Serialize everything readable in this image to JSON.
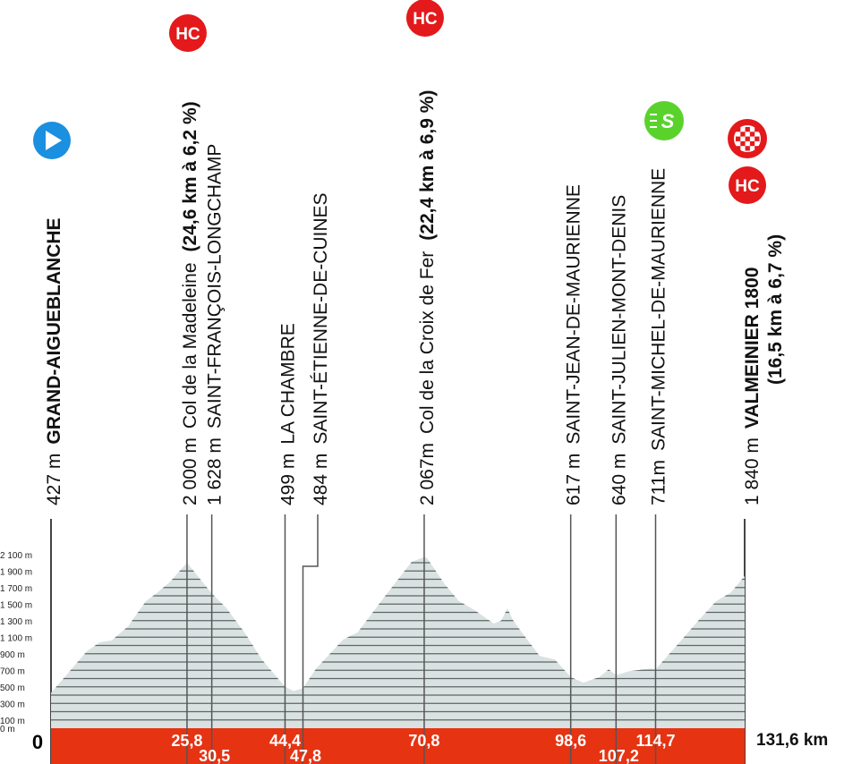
{
  "chart_data": {
    "type": "area",
    "xlabel": "",
    "ylabel": "",
    "xlim": [
      0,
      131.6
    ],
    "ylim": [
      0,
      2200
    ],
    "grid": false,
    "y_ticks": [
      {
        "value": 2100,
        "label": "2 100 m"
      },
      {
        "value": 1900,
        "label": "1 900 m"
      },
      {
        "value": 1700,
        "label": "1 700 m"
      },
      {
        "value": 1500,
        "label": "1 500 m"
      },
      {
        "value": 1300,
        "label": "1 300 m"
      },
      {
        "value": 1100,
        "label": "1 100 m"
      },
      {
        "value": 900,
        "label": "900 m"
      },
      {
        "value": 700,
        "label": "700 m"
      },
      {
        "value": 500,
        "label": "500 m"
      },
      {
        "value": 300,
        "label": "300 m"
      },
      {
        "value": 100,
        "label": "100 m"
      },
      {
        "value": 0,
        "label": "0 m"
      }
    ],
    "start_label": "0",
    "total_label": "131,6 km",
    "profile": {
      "x": [
        0,
        6.8,
        9.3,
        11.5,
        14.6,
        18,
        20,
        22.6,
        25.8,
        30.5,
        33.3,
        36.7,
        40,
        44.4,
        46,
        47.8,
        50.3,
        55.4,
        58.2,
        63.3,
        65.5,
        68.4,
        70.8,
        71.3,
        74.7,
        77.4,
        80.3,
        84,
        85.4,
        86.6,
        87.6,
        89.3,
        92.7,
        95.6,
        98.6,
        101,
        104,
        105.8,
        107.2,
        109.7,
        113.8,
        114.7,
        119.4,
        122.8,
        126.2,
        129,
        131.6
      ],
      "y": [
        427,
        930,
        1040,
        1060,
        1230,
        1535,
        1630,
        1770,
        2000,
        1628,
        1450,
        1160,
        830,
        499,
        450,
        484,
        720,
        1070,
        1160,
        1590,
        1770,
        2010,
        2067,
        2060,
        1740,
        1535,
        1430,
        1265,
        1300,
        1450,
        1310,
        1160,
        875,
        830,
        617,
        550,
        617,
        710,
        640,
        690,
        720,
        711,
        1050,
        1300,
        1535,
        1640,
        1840
      ]
    },
    "colors": {
      "profile_fill": "#d9e2e1",
      "stripe": "#5c6666",
      "band": "#e63312",
      "hc": "#e3191b",
      "start": "#1b8fe0",
      "sprint": "#5ad22c"
    },
    "markers": [
      {
        "km": 0,
        "km_label": "",
        "elevation": "427 m",
        "name": "GRAND-AIGUEBLANCHE",
        "name_bold": true,
        "detail": "",
        "icon": "start-icon"
      },
      {
        "km": 25.8,
        "km_label": "25,8",
        "elevation": "2 000 m",
        "name": "Col de la Madeleine",
        "name_bold": false,
        "detail": "(24,6 km à 6,2 %)",
        "icon": "hc-icon",
        "icon_label": "HC"
      },
      {
        "km": 30.5,
        "km_label": "30,5",
        "elevation": "1 628 m",
        "name": "SAINT-FRANÇOIS-LONGCHAMP",
        "name_bold": false,
        "detail": ""
      },
      {
        "km": 44.4,
        "km_label": "44,4",
        "elevation": "499 m",
        "name": "LA CHAMBRE",
        "name_bold": false,
        "detail": ""
      },
      {
        "km": 47.8,
        "km_label": "47,8",
        "elevation": "484 m",
        "name": "SAINT-ÉTIENNE-DE-CUINES",
        "name_bold": false,
        "detail": ""
      },
      {
        "km": 70.8,
        "km_label": "70,8",
        "elevation": "2 067m",
        "name": "Col de la Croix de Fer",
        "name_bold": false,
        "detail": "(22,4 km à 6,9 %)",
        "icon": "hc-icon",
        "icon_label": "HC"
      },
      {
        "km": 98.6,
        "km_label": "98,6",
        "elevation": "617 m",
        "name": "SAINT-JEAN-DE-MAURIENNE",
        "name_bold": false,
        "detail": ""
      },
      {
        "km": 107.2,
        "km_label": "107,2",
        "elevation": "640 m",
        "name": "SAINT-JULIEN-MONT-DENIS",
        "name_bold": false,
        "detail": ""
      },
      {
        "km": 114.7,
        "km_label": "114,7",
        "elevation": "711m",
        "name": "SAINT-MICHEL-DE-MAURIENNE",
        "name_bold": false,
        "detail": "",
        "icon": "sprint-icon",
        "icon_label": "S"
      },
      {
        "km": 131.6,
        "km_label": "",
        "elevation": "1 840 m",
        "name": "VALMEINIER 1800",
        "name_bold": true,
        "detail": "(16,5 km à 6,7 %)",
        "icon": "finish-icon",
        "icon_label": "HC"
      }
    ]
  }
}
